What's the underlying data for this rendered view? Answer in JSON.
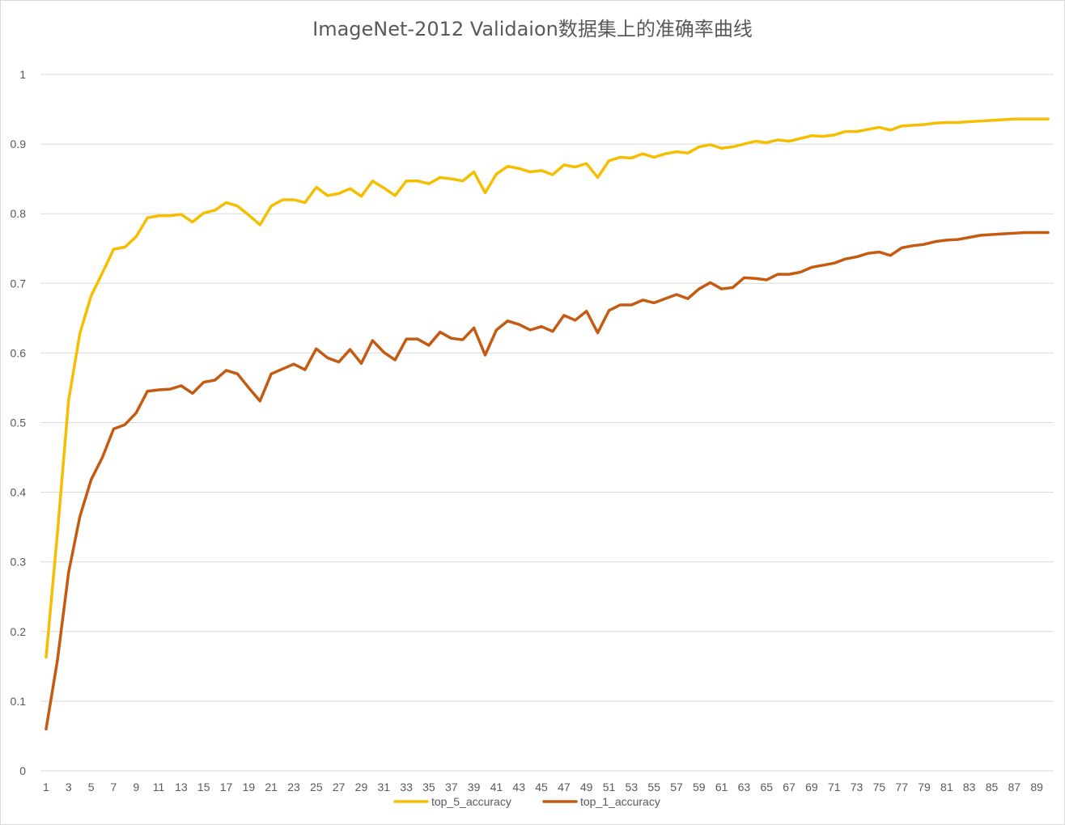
{
  "chart_data": {
    "type": "line",
    "title": "ImageNet-2012 Validaion数据集上的准确率曲线",
    "xlabel": "",
    "ylabel": "",
    "ylim": [
      0,
      1
    ],
    "yticks": [
      "0",
      "0.1",
      "0.2",
      "0.3",
      "0.4",
      "0.5",
      "0.6",
      "0.7",
      "0.8",
      "0.9",
      "1"
    ],
    "xticks": [
      "1",
      "3",
      "5",
      "7",
      "9",
      "11",
      "13",
      "15",
      "17",
      "19",
      "21",
      "23",
      "25",
      "27",
      "29",
      "31",
      "33",
      "35",
      "37",
      "39",
      "41",
      "43",
      "45",
      "47",
      "49",
      "51",
      "53",
      "55",
      "57",
      "59",
      "61",
      "63",
      "65",
      "67",
      "69",
      "71",
      "73",
      "75",
      "77",
      "79",
      "81",
      "83",
      "85",
      "87",
      "89"
    ],
    "x_count": 90,
    "grid": true,
    "legend_position": "bottom",
    "series": [
      {
        "name": "top_5_accuracy",
        "color": "#F5BE00",
        "values": [
          0.163,
          0.34,
          0.532,
          0.628,
          0.682,
          0.715,
          0.749,
          0.752,
          0.767,
          0.794,
          0.797,
          0.797,
          0.799,
          0.788,
          0.801,
          0.805,
          0.816,
          0.811,
          0.798,
          0.784,
          0.811,
          0.82,
          0.82,
          0.816,
          0.838,
          0.826,
          0.829,
          0.836,
          0.825,
          0.847,
          0.837,
          0.826,
          0.847,
          0.847,
          0.843,
          0.852,
          0.85,
          0.847,
          0.86,
          0.83,
          0.857,
          0.868,
          0.865,
          0.86,
          0.862,
          0.856,
          0.87,
          0.867,
          0.872,
          0.852,
          0.876,
          0.881,
          0.88,
          0.886,
          0.881,
          0.886,
          0.889,
          0.887,
          0.896,
          0.899,
          0.894,
          0.896,
          0.9,
          0.904,
          0.902,
          0.906,
          0.904,
          0.908,
          0.912,
          0.911,
          0.913,
          0.918,
          0.918,
          0.921,
          0.924,
          0.92,
          0.926,
          0.927,
          0.928,
          0.93,
          0.931,
          0.931,
          0.932,
          0.933,
          0.934,
          0.935,
          0.936,
          0.936,
          0.936,
          0.936
        ]
      },
      {
        "name": "top_1_accuracy",
        "color": "#C55A11",
        "values": [
          0.06,
          0.158,
          0.285,
          0.365,
          0.418,
          0.45,
          0.491,
          0.497,
          0.514,
          0.545,
          0.547,
          0.548,
          0.553,
          0.542,
          0.558,
          0.561,
          0.575,
          0.57,
          0.55,
          0.531,
          0.57,
          0.577,
          0.584,
          0.576,
          0.606,
          0.593,
          0.587,
          0.605,
          0.585,
          0.618,
          0.601,
          0.59,
          0.62,
          0.62,
          0.611,
          0.63,
          0.621,
          0.619,
          0.636,
          0.597,
          0.633,
          0.646,
          0.641,
          0.633,
          0.638,
          0.631,
          0.654,
          0.647,
          0.66,
          0.629,
          0.661,
          0.669,
          0.669,
          0.676,
          0.672,
          0.678,
          0.684,
          0.678,
          0.692,
          0.701,
          0.692,
          0.694,
          0.708,
          0.707,
          0.705,
          0.713,
          0.713,
          0.716,
          0.723,
          0.726,
          0.729,
          0.735,
          0.738,
          0.743,
          0.745,
          0.74,
          0.751,
          0.754,
          0.756,
          0.76,
          0.762,
          0.763,
          0.766,
          0.769,
          0.77,
          0.771,
          0.772,
          0.773,
          0.773,
          0.773
        ]
      }
    ]
  }
}
